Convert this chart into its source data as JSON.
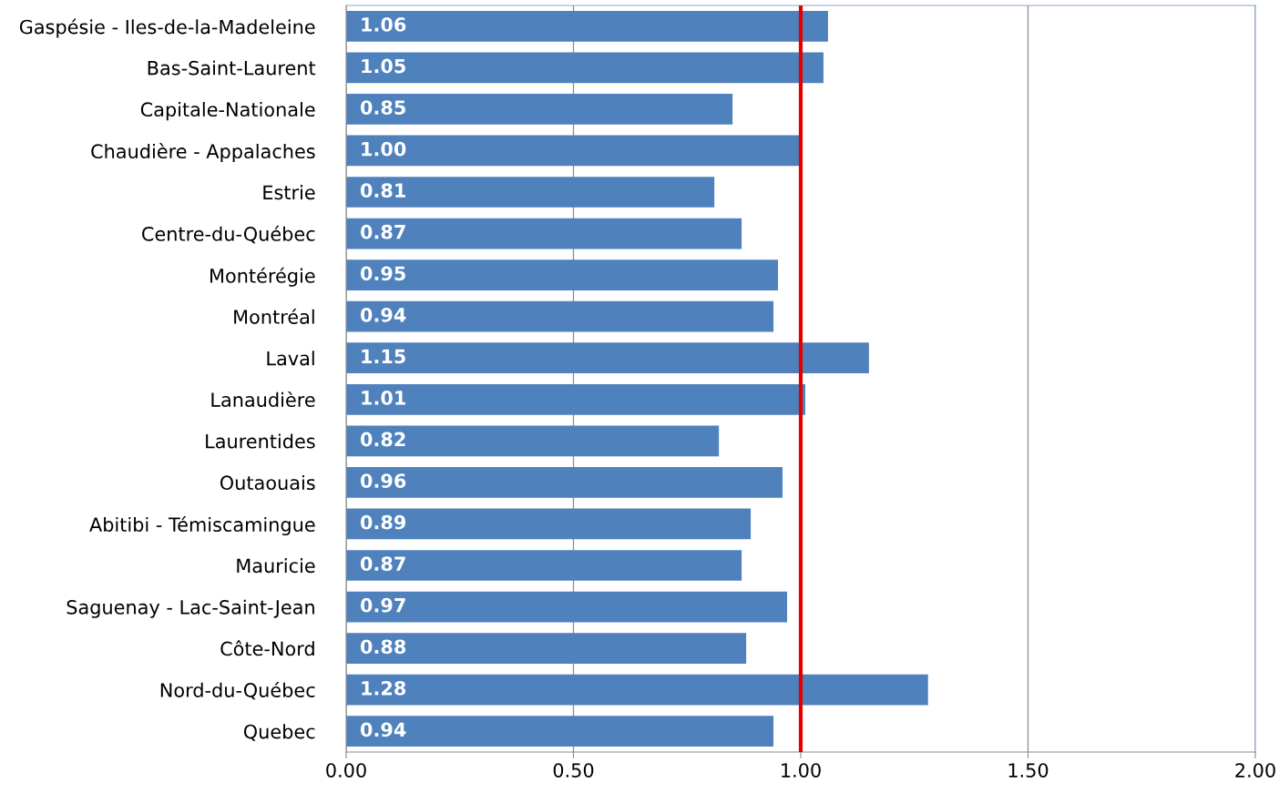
{
  "chart_data": {
    "type": "bar",
    "orientation": "horizontal",
    "categories": [
      "Gaspésie - Iles-de-la-Madeleine",
      "Bas-Saint-Laurent",
      "Capitale-Nationale",
      "Chaudière - Appalaches",
      "Estrie",
      "Centre-du-Québec",
      "Montérégie",
      "Montréal",
      "Laval",
      "Lanaudière",
      "Laurentides",
      "Outaouais",
      "Abitibi - Témiscamingue",
      "Mauricie",
      "Saguenay - Lac-Saint-Jean",
      "Côte-Nord",
      "Nord-du-Québec",
      "Quebec"
    ],
    "values": [
      1.06,
      1.05,
      0.85,
      1.0,
      0.81,
      0.87,
      0.95,
      0.94,
      1.15,
      1.01,
      0.82,
      0.96,
      0.89,
      0.87,
      0.97,
      0.88,
      1.28,
      0.94
    ],
    "value_labels": [
      "1.06",
      "1.05",
      "0.85",
      "1.00",
      "0.81",
      "0.87",
      "0.95",
      "0.94",
      "1.15",
      "1.01",
      "0.82",
      "0.96",
      "0.89",
      "0.87",
      "0.97",
      "0.88",
      "1.28",
      "0.94"
    ],
    "color": "#4f81bd",
    "xlim": [
      0,
      2
    ],
    "xticks": [
      {
        "value": 0,
        "label": "0.00"
      },
      {
        "value": 0.5,
        "label": "0.50"
      },
      {
        "value": 1,
        "label": "1.00"
      },
      {
        "value": 1.5,
        "label": "1.50"
      },
      {
        "value": 2,
        "label": "2.00"
      }
    ],
    "grid": "x",
    "ref_lines": [
      {
        "axis": "x",
        "value": 1,
        "color": "#e00000",
        "line_style": "solid"
      }
    ]
  }
}
